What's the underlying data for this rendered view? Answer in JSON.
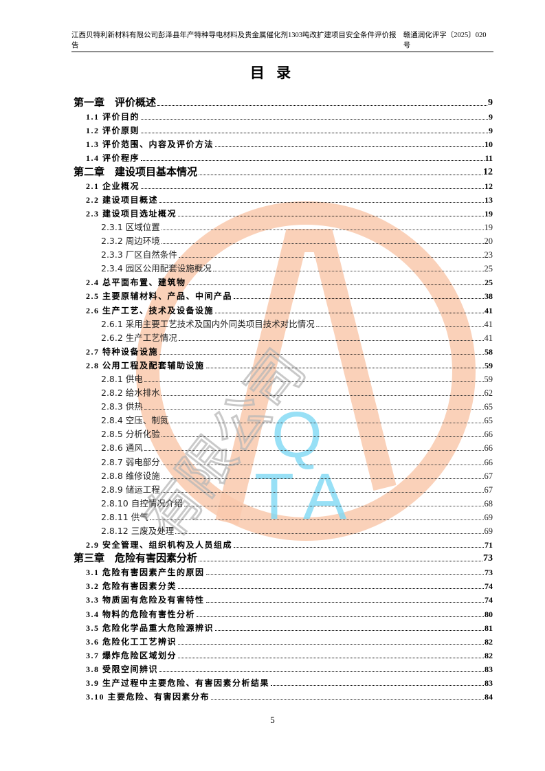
{
  "header": {
    "report_title": "江西贝特利新材料有限公司彭泽县年产特种导电材料及贵金属催化剂1303吨改扩建项目安全条件评价报告",
    "doc_number": "赣通润化评字〔2025〕020号"
  },
  "title": "目 录",
  "watermark": {
    "logo_letters": "QTA",
    "text": "有限公司",
    "colors": {
      "ring": "#f9c9ad",
      "letters": "#7fd9f5",
      "text": "#b8b8b8"
    }
  },
  "toc": [
    {
      "level": 1,
      "label": "第一章　评价概述",
      "page": "9"
    },
    {
      "level": 2,
      "label": "1.1 评价目的",
      "page": "9"
    },
    {
      "level": 2,
      "label": "1.2 评价原则",
      "page": "9"
    },
    {
      "level": 2,
      "label": "1.3 评价范围、内容及评价方法",
      "page": "10"
    },
    {
      "level": 2,
      "label": "1.4 评价程序",
      "page": "11"
    },
    {
      "level": 1,
      "label": "第二章　建设项目基本情况",
      "page": "12"
    },
    {
      "level": 2,
      "label": "2.1 企业概况",
      "page": "12"
    },
    {
      "level": 2,
      "label": "2.2 建设项目概述",
      "page": "13"
    },
    {
      "level": 2,
      "label": "2.3 建设项目选址概况",
      "page": "19"
    },
    {
      "level": 3,
      "label": "2.3.1 区域位置",
      "page": "19"
    },
    {
      "level": 3,
      "label": "2.3.2 周边环境",
      "page": "20"
    },
    {
      "level": 3,
      "label": "2.3.3  厂区自然条件",
      "page": "23"
    },
    {
      "level": 3,
      "label": "2.3.4 园区公用配套设施概况",
      "page": "25"
    },
    {
      "level": 2,
      "label": "2.4 总平面布置、建筑物",
      "page": "25"
    },
    {
      "level": 2,
      "label": "2.5 主要原辅材料、产品、中间产品",
      "page": "38"
    },
    {
      "level": 2,
      "label": "2.6 生产工艺、技术及设备设施",
      "page": "41"
    },
    {
      "level": 3,
      "label": "2.6.1 采用主要工艺技术及国内外同类项目技术对比情况",
      "page": "41"
    },
    {
      "level": 3,
      "label": "2.6.2 生产工艺情况",
      "page": "41"
    },
    {
      "level": 2,
      "label": "2.7 特种设备设施",
      "page": "58"
    },
    {
      "level": 2,
      "label": "2.8 公用工程及配套辅助设施",
      "page": "59"
    },
    {
      "level": 3,
      "label": "2.8.1 供电",
      "page": "59"
    },
    {
      "level": 3,
      "label": "2.8.2 给水排水",
      "page": "62"
    },
    {
      "level": 3,
      "label": "2.8.3 供热",
      "page": "65"
    },
    {
      "level": 3,
      "label": "2.8.4  空压、制氮",
      "page": "65"
    },
    {
      "level": 3,
      "label": "2.8.5 分析化验",
      "page": "66"
    },
    {
      "level": 3,
      "label": "2.8.6 通风",
      "page": "66"
    },
    {
      "level": 3,
      "label": "2.8.7 弱电部分",
      "page": "66"
    },
    {
      "level": 3,
      "label": "2.8.8  维修设施",
      "page": "67"
    },
    {
      "level": 3,
      "label": "2.8.9 储运工程",
      "page": "67"
    },
    {
      "level": 3,
      "label": "2.8.10 自控情况介绍",
      "page": "68"
    },
    {
      "level": 3,
      "label": "2.8.11 供气",
      "page": "69"
    },
    {
      "level": 3,
      "label": "2.8.12 三废及处理",
      "page": "69"
    },
    {
      "level": 2,
      "label": "2.9 安全管理、组织机构及人员组成",
      "page": "71"
    },
    {
      "level": 1,
      "label": "第三章　危险有害因素分析",
      "page": "73"
    },
    {
      "level": 2,
      "label": "3.1 危险有害因素产生的原因",
      "page": "73"
    },
    {
      "level": 2,
      "label": "3.2 危险有害因素分类",
      "page": "74"
    },
    {
      "level": 2,
      "label": "3.3 物质固有危险及有害特性",
      "page": "74"
    },
    {
      "level": 2,
      "label": "3.4 物料的危险有害性分析",
      "page": "80"
    },
    {
      "level": 2,
      "label": "3.5 危险化学品重大危险源辨识",
      "page": "81"
    },
    {
      "level": 2,
      "label": "3.6 危险化工工艺辨识",
      "page": "82"
    },
    {
      "level": 2,
      "label": "3.7 爆炸危险区域划分",
      "page": "82"
    },
    {
      "level": 2,
      "label": "3.8 受限空间辨识",
      "page": "83"
    },
    {
      "level": 2,
      "label": "3.9 生产过程中主要危险、有害因素分析结果",
      "page": "83"
    },
    {
      "level": 2,
      "label": "3.10 主要危险、有害因素分布",
      "page": "84"
    }
  ],
  "page_number": "5"
}
